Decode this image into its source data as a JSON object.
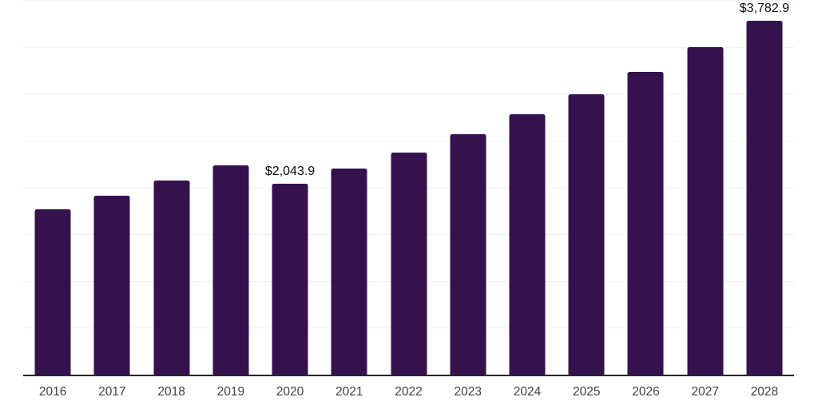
{
  "chart_data": {
    "type": "bar",
    "title": "",
    "xlabel": "",
    "ylabel": "",
    "categories": [
      "2016",
      "2017",
      "2018",
      "2019",
      "2020",
      "2021",
      "2022",
      "2023",
      "2024",
      "2025",
      "2026",
      "2027",
      "2028"
    ],
    "values": [
      1775,
      1920,
      2080,
      2245,
      2043.9,
      2210,
      2380,
      2575,
      2790,
      3000,
      3240,
      3505,
      3782.9
    ],
    "data_labels": {
      "2020": "$2,043.9",
      "2028": "$3,782.9"
    },
    "ylim": [
      0,
      4000
    ],
    "grid_step": 500,
    "grid": true,
    "legend": false,
    "y_tick_labels_visible": false,
    "colors": {
      "bar": "#35114E",
      "gridline": "#F2F2F3",
      "axis_line": "#262626",
      "tick_label": "#404040",
      "data_label": "#0D0D0D",
      "background": "#FFFFFF"
    }
  }
}
